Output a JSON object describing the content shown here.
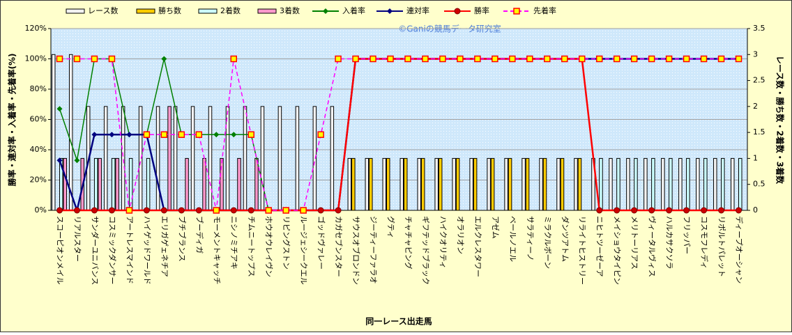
{
  "chart_data": {
    "type": "bar_line",
    "watermark": "©Ganiの競馬データ研究室",
    "x_label": "同一レース出走馬",
    "y_label": "勝率・連対率・入着率・先着率(%)",
    "y2_label": "レース数・勝ち数・2着数・3着数",
    "categories": [
      "スコーピオンメイル",
      "リアルスター",
      "サンダーユニバンス",
      "コスミックダンサー",
      "アートレスマインド",
      "ハイゲッドワールド",
      "エリガゲェネチア",
      "ブチブランス",
      "ブーディガ",
      "モーメントキャッチ",
      "ニシノミチアキ",
      "チムニートップス",
      "ホウオウレイヴン",
      "リピングストン",
      "ルージェシークエル",
      "ゴッドヴァレー",
      "カガセブンスター",
      "サウスオブロンドン",
      "ジーティーファラオ",
      "グティ",
      "チャチャピング",
      "ギフテッドブラック",
      "ハイクオリティ",
      "オラリオン",
      "エルクレスタワー",
      "アゼム",
      "ベールノエル",
      "サラティーノ",
      "ミラクルボーン",
      "ダンツアトム",
      "リライトヒストリー",
      "ニヒトツーゼーア",
      "メイショウタイピン",
      "メリトーリアス",
      "ヴィータルヴィス",
      "ハルカサクソラ",
      "フリッパー",
      "コスモフレディ",
      "リポルトパレット",
      "ディープオーシャン"
    ],
    "ylim": [
      0,
      120
    ],
    "yticks": [
      {
        "value": 0,
        "label": "0%"
      },
      {
        "value": 20,
        "label": "20%"
      },
      {
        "value": 40,
        "label": "40%"
      },
      {
        "value": 60,
        "label": "60%"
      },
      {
        "value": 80,
        "label": "80%"
      },
      {
        "value": 100,
        "label": "100%"
      },
      {
        "value": 120,
        "label": "120%"
      }
    ],
    "y2lim": [
      0,
      3.5
    ],
    "y2ticks": [
      0,
      0.5,
      1,
      1.5,
      2,
      2.5,
      3,
      3.5
    ],
    "grid": true,
    "series": [
      {
        "name": "レース数",
        "type": "bar",
        "axis": "y2",
        "color": "#f2f2f2",
        "values": [
          3,
          3,
          2,
          2,
          2,
          2,
          2,
          2,
          2,
          2,
          2,
          2,
          2,
          2,
          2,
          2,
          2,
          1,
          1,
          1,
          1,
          1,
          1,
          1,
          1,
          1,
          1,
          1,
          1,
          1,
          1,
          1,
          1,
          1,
          1,
          1,
          1,
          1,
          1,
          1
        ]
      },
      {
        "name": "勝ち数",
        "type": "bar",
        "axis": "y2",
        "color": "#ffcc00",
        "values": [
          0,
          0,
          0,
          0,
          0,
          0,
          0,
          0,
          0,
          0,
          0,
          0,
          0,
          0,
          0,
          0,
          0,
          1,
          1,
          1,
          1,
          1,
          1,
          1,
          1,
          1,
          1,
          1,
          1,
          1,
          1,
          0,
          0,
          0,
          0,
          0,
          0,
          0,
          0,
          0
        ]
      },
      {
        "name": "2着数",
        "type": "bar",
        "axis": "y2",
        "color": "#ccffff",
        "values": [
          1,
          0,
          1,
          1,
          1,
          1,
          0,
          0,
          0,
          0,
          0,
          0,
          0,
          0,
          0,
          0,
          0,
          0,
          0,
          0,
          0,
          0,
          0,
          0,
          0,
          0,
          0,
          0,
          0,
          0,
          0,
          1,
          1,
          1,
          1,
          1,
          1,
          1,
          1,
          1
        ]
      },
      {
        "name": "3着数",
        "type": "bar",
        "axis": "y2",
        "color": "#ff99cc",
        "values": [
          1,
          1,
          1,
          1,
          0,
          0,
          2,
          1,
          1,
          1,
          1,
          1,
          0,
          0,
          0,
          0,
          0,
          0,
          0,
          0,
          0,
          0,
          0,
          0,
          0,
          0,
          0,
          0,
          0,
          0,
          0,
          0,
          0,
          0,
          0,
          0,
          0,
          0,
          0,
          0
        ]
      },
      {
        "name": "入着率",
        "type": "line",
        "axis": "y",
        "color": "#008000",
        "marker": "diamond",
        "values": [
          67,
          33,
          100,
          100,
          50,
          50,
          100,
          50,
          50,
          50,
          50,
          50,
          0,
          0,
          0,
          0,
          0,
          100,
          100,
          100,
          100,
          100,
          100,
          100,
          100,
          100,
          100,
          100,
          100,
          100,
          100,
          100,
          100,
          100,
          100,
          100,
          100,
          100,
          100,
          100
        ]
      },
      {
        "name": "連対率",
        "type": "line",
        "axis": "y",
        "color": "#000080",
        "marker": "diamond",
        "values": [
          33,
          0,
          50,
          50,
          50,
          50,
          0,
          0,
          0,
          0,
          0,
          0,
          0,
          0,
          0,
          0,
          0,
          100,
          100,
          100,
          100,
          100,
          100,
          100,
          100,
          100,
          100,
          100,
          100,
          100,
          100,
          100,
          100,
          100,
          100,
          100,
          100,
          100,
          100,
          100
        ]
      },
      {
        "name": "勝率",
        "type": "line",
        "axis": "y",
        "color": "#ff0000",
        "marker": "circle",
        "values": [
          0,
          0,
          0,
          0,
          0,
          0,
          0,
          0,
          0,
          0,
          0,
          0,
          0,
          0,
          0,
          0,
          0,
          100,
          100,
          100,
          100,
          100,
          100,
          100,
          100,
          100,
          100,
          100,
          100,
          100,
          100,
          0,
          0,
          0,
          0,
          0,
          0,
          0,
          0,
          0
        ]
      },
      {
        "name": "先着率",
        "type": "line",
        "axis": "y",
        "color": "#ff00ff",
        "marker": "square",
        "dashed": true,
        "values": [
          100,
          100,
          100,
          100,
          0,
          50,
          50,
          50,
          50,
          0,
          100,
          50,
          0,
          0,
          0,
          50,
          100,
          100,
          100,
          100,
          100,
          100,
          100,
          100,
          100,
          100,
          100,
          100,
          100,
          100,
          100,
          100,
          100,
          100,
          100,
          100,
          100,
          100,
          100,
          100
        ]
      }
    ]
  }
}
